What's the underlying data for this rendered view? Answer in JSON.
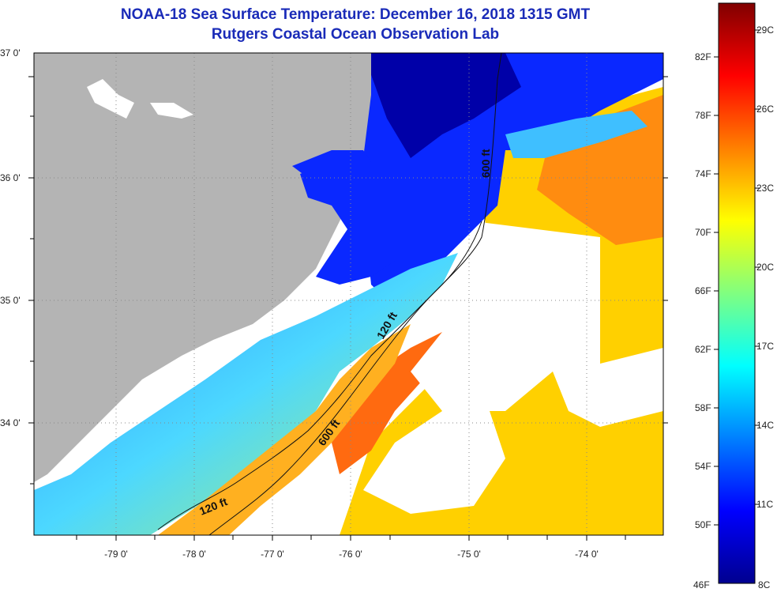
{
  "header": {
    "title": "NOAA-18 Sea Surface Temperature:  December 16, 2018 1315 GMT",
    "subtitle": "Rutgers Coastal Ocean Observation Lab"
  },
  "map": {
    "lon_ticks": [
      "-79 0'",
      "-78 0'",
      "-77 0'",
      "-76 0'",
      "-75 0'",
      "-74 0'"
    ],
    "lat_ticks": [
      "37 0'",
      "36 0'",
      "35 0'",
      "34 0'"
    ],
    "contours": [
      {
        "label": "120 ft"
      },
      {
        "label": "600 ft"
      },
      {
        "label": "120 ft"
      },
      {
        "label": "600 ft"
      }
    ]
  },
  "colorbar": {
    "fahrenheit_labels": [
      "82F",
      "78F",
      "74F",
      "70F",
      "66F",
      "62F",
      "58F",
      "54F",
      "50F",
      "46F"
    ],
    "celsius_labels": [
      "29C",
      "26C",
      "23C",
      "20C",
      "17C",
      "14C",
      "11C",
      "8C"
    ],
    "colors": [
      "#00008f",
      "#0000ff",
      "#0080ff",
      "#00ffff",
      "#80ff80",
      "#ffff00",
      "#ff8000",
      "#ff0000",
      "#800000"
    ]
  },
  "colors": {
    "land": "#b4b4b4",
    "cloud": "#ffffff",
    "title": "#1a2bb8"
  }
}
